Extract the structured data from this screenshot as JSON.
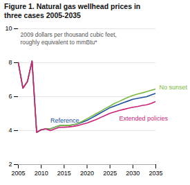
{
  "chart_data": {
    "type": "line",
    "title": "Figure 1. Natural gas wellhead prices in\nthree cases 2005-2035",
    "subtitle": "2009 dollars per thousand cubic feet,\nroughly equivalent to mmBtu*",
    "x": [
      2005,
      2006,
      2007,
      2008,
      2009,
      2010,
      2011,
      2012,
      2013,
      2014,
      2015,
      2016,
      2017,
      2018,
      2019,
      2020,
      2021,
      2022,
      2023,
      2024,
      2025,
      2026,
      2027,
      2028,
      2029,
      2030,
      2031,
      2032,
      2033,
      2034,
      2035
    ],
    "series": [
      {
        "name": "Reference",
        "color": "#1a52a0",
        "values": [
          8.0,
          6.5,
          6.9,
          8.1,
          3.9,
          4.05,
          4.1,
          4.1,
          4.2,
          4.3,
          4.3,
          4.3,
          4.35,
          4.4,
          4.5,
          4.6,
          4.75,
          4.9,
          5.05,
          5.2,
          5.35,
          5.45,
          5.55,
          5.65,
          5.75,
          5.85,
          5.9,
          5.95,
          6.0,
          6.1,
          6.2
        ]
      },
      {
        "name": "No sunset",
        "color": "#7ab840",
        "values": [
          8.0,
          6.5,
          6.9,
          8.1,
          3.9,
          4.05,
          4.1,
          4.1,
          4.2,
          4.3,
          4.3,
          4.3,
          4.35,
          4.42,
          4.55,
          4.7,
          4.85,
          5.0,
          5.15,
          5.3,
          5.45,
          5.6,
          5.72,
          5.85,
          5.97,
          6.07,
          6.15,
          6.22,
          6.3,
          6.38,
          6.45
        ]
      },
      {
        "name": "Extended policies",
        "color": "#cc1f78",
        "values": [
          8.0,
          6.5,
          6.9,
          8.1,
          3.9,
          4.05,
          4.1,
          4.0,
          4.1,
          4.2,
          4.2,
          4.22,
          4.25,
          4.3,
          4.38,
          4.45,
          4.55,
          4.65,
          4.78,
          4.9,
          5.02,
          5.1,
          5.18,
          5.25,
          5.32,
          5.38,
          5.42,
          5.48,
          5.52,
          5.6,
          5.72
        ]
      }
    ],
    "xlim": [
      2005,
      2035
    ],
    "xticks": [
      2005,
      2010,
      2015,
      2020,
      2025,
      2030,
      2035
    ],
    "ylim": [
      2,
      10
    ],
    "yticks": [
      2,
      4,
      6,
      8,
      10
    ],
    "grid": true
  }
}
